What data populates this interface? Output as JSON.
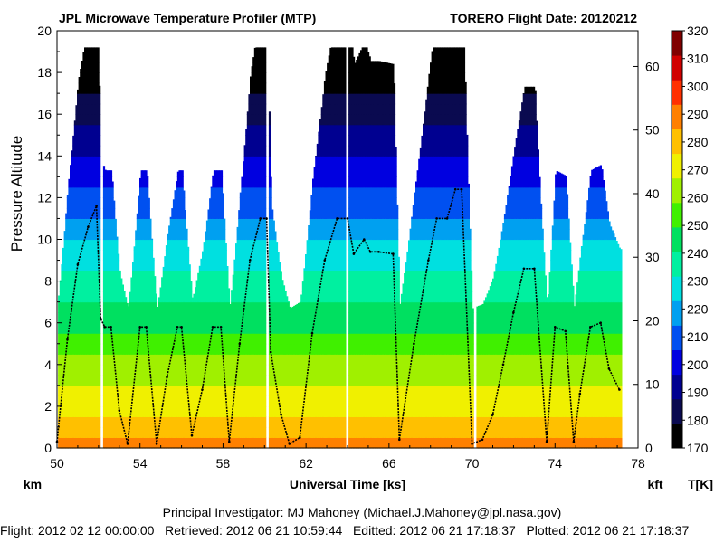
{
  "chart_data": {
    "type": "heatmap",
    "title": "JPL Microwave Temperature Profiler (MTP)",
    "title_right": "TORERO  Flight Date: 20120212",
    "ylabel": "Pressure Altitude",
    "ylabel_units": "km",
    "xlabel": "Universal Time [ks]",
    "xlim": [
      50,
      78
    ],
    "ylim": [
      0,
      20
    ],
    "x_ticks": [
      "50",
      "54",
      "58",
      "62",
      "66",
      "70",
      "74",
      "78"
    ],
    "y_ticks": [
      "0",
      "2",
      "4",
      "6",
      "8",
      "10",
      "12",
      "14",
      "16",
      "18",
      "20"
    ],
    "y2_label": "kft",
    "y2_ticks": [
      "0",
      "10",
      "20",
      "30",
      "40",
      "50",
      "60"
    ],
    "colorbar_label": "T[K]",
    "colorbar_ticks": [
      "170",
      "180",
      "190",
      "200",
      "210",
      "220",
      "230",
      "240",
      "250",
      "260",
      "270",
      "280",
      "290",
      "300",
      "310",
      "320"
    ],
    "colorbar_range": [
      170,
      320
    ],
    "colorscale": [
      "#000000",
      "#0a0a50",
      "#000090",
      "#0000e0",
      "#0050f0",
      "#00a0f0",
      "#00e0e0",
      "#00f0a0",
      "#00e060",
      "#40f000",
      "#a0f000",
      "#f0f000",
      "#ffc000",
      "#ff8000",
      "#ff3000",
      "#d00000",
      "#800000"
    ],
    "grid": false,
    "series": [
      {
        "name": "",
        "x": [
          50.0,
          50.5,
          51.0,
          51.5,
          51.9,
          52.1,
          52.3,
          52.6,
          53.0,
          53.4,
          54.0,
          54.3,
          54.8,
          55.3,
          55.8,
          56.0,
          56.5,
          57.0,
          57.5,
          57.9,
          58.3,
          58.8,
          59.3,
          59.8,
          60.1,
          60.3,
          60.8,
          61.2,
          61.7,
          62.3,
          62.9,
          63.5,
          64.0,
          64.3,
          64.8,
          65.1,
          65.5,
          66.2,
          66.5,
          67.2,
          67.9,
          68.3,
          68.8,
          69.2,
          69.5,
          70.0,
          70.5,
          71.0,
          71.5,
          72.0,
          72.5,
          73.0,
          73.6,
          74.0,
          74.5,
          74.9,
          75.2,
          75.7,
          76.2,
          76.6,
          77.1
        ],
        "y": [
          0.3,
          5.2,
          8.8,
          10.6,
          11.6,
          6.2,
          5.8,
          5.8,
          1.8,
          0.2,
          5.8,
          5.8,
          0.2,
          3.4,
          5.8,
          5.8,
          0.6,
          2.8,
          5.8,
          5.8,
          0.3,
          5.0,
          9.0,
          11.0,
          11.0,
          4.6,
          1.6,
          0.2,
          0.5,
          5.5,
          9.0,
          11.0,
          11.0,
          9.3,
          10.0,
          9.4,
          9.4,
          9.3,
          0.4,
          5.0,
          9.0,
          11.0,
          11.0,
          12.4,
          12.4,
          0.2,
          0.4,
          1.6,
          4.0,
          6.5,
          8.6,
          8.6,
          0.3,
          5.8,
          5.6,
          0.3,
          2.6,
          5.8,
          6.0,
          3.8,
          2.8
        ]
      }
    ]
  },
  "footer": {
    "pi": "Principal Investigator: MJ Mahoney (Michael.J.Mahoney@jpl.nasa.gov)",
    "info": "Flight: 2012 02 12 00:00:00   Retrieved: 2012 06 21 10:59:44   Editted: 2012 06 21 17:18:37   Plotted: 2012 06 21 17:18:37"
  }
}
